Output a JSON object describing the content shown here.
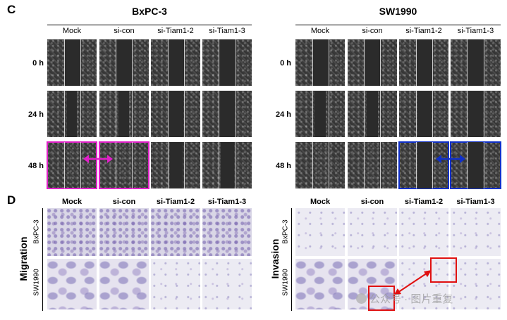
{
  "panel_c": {
    "letter": "C",
    "groups": [
      {
        "title": "BxPC-3",
        "columns": [
          "Mock",
          "si-con",
          "si-Tiam1-2",
          "si-Tiam1-3"
        ]
      },
      {
        "title": "SW1990",
        "columns": [
          "Mock",
          "si-con",
          "si-Tiam1-2",
          "si-Tiam1-3"
        ]
      }
    ],
    "rows": [
      "0 h",
      "24 h",
      "48 h"
    ],
    "highlight_colors": {
      "bxpc3": "#e020c8",
      "sw1990": "#1030c8"
    }
  },
  "panel_d": {
    "letter": "D",
    "columns": [
      "Mock",
      "si-con",
      "si-Tiam1-2",
      "si-Tiam1-3"
    ],
    "left_section": "Migration",
    "right_section": "Invasion",
    "cell_lines": [
      "BxPC-3",
      "SW1990"
    ],
    "highlight_color": "#e01010"
  },
  "watermark": "公众号 · 图片重复"
}
